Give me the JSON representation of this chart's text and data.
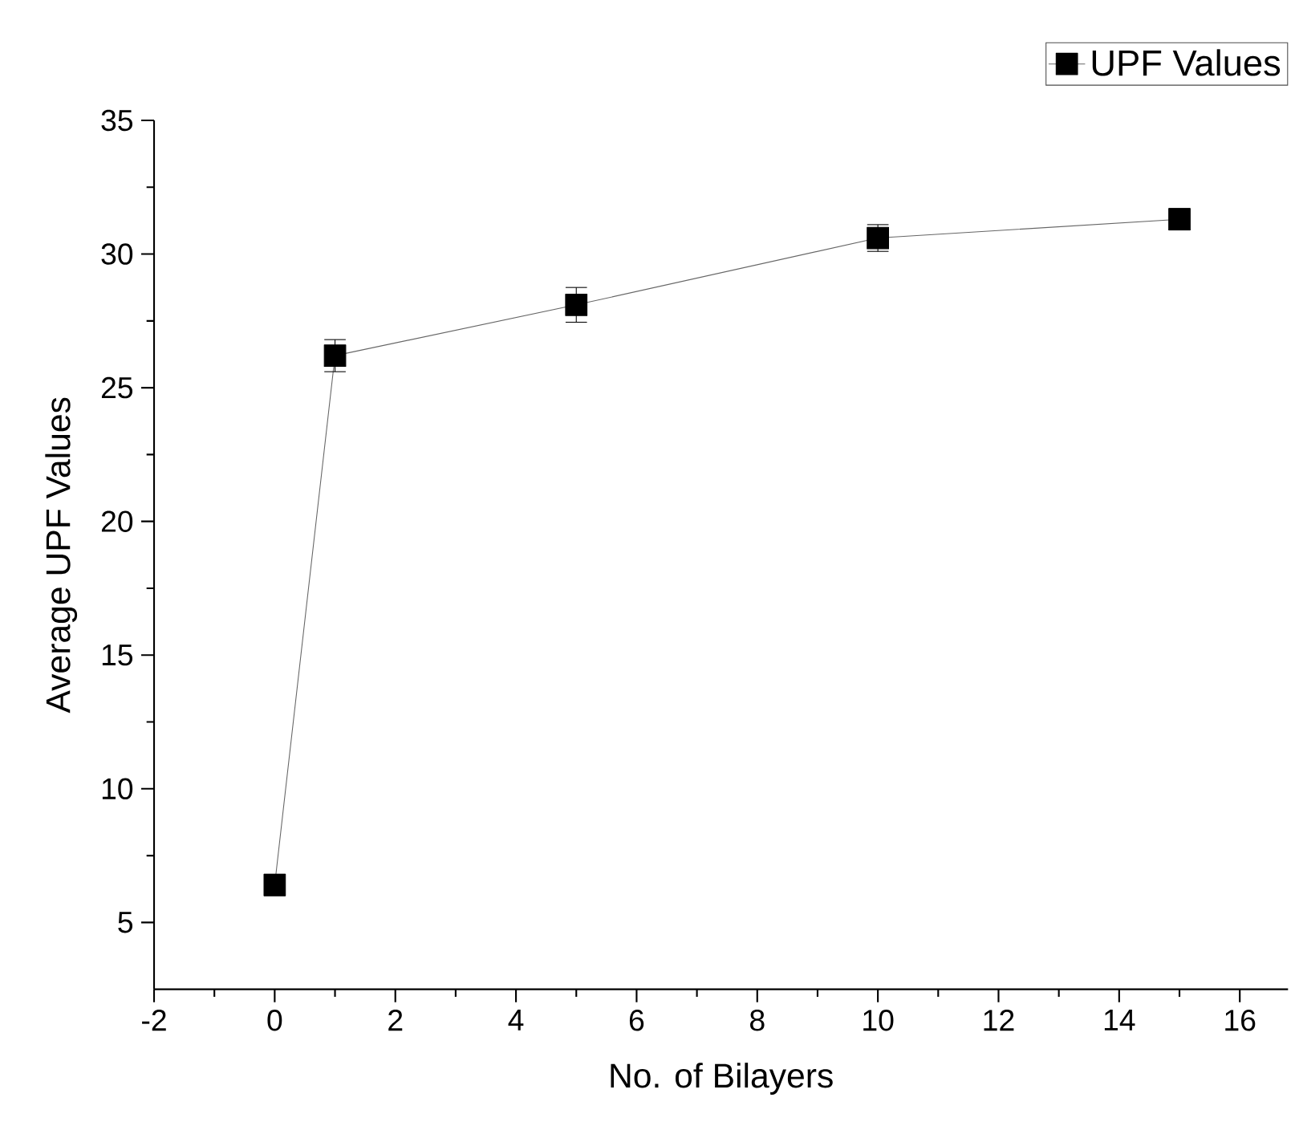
{
  "chart_data": {
    "type": "line",
    "xlabel": "No. of Bilayers",
    "ylabel": "Average UPF Values",
    "x": [
      0,
      1,
      5,
      10,
      15
    ],
    "series": [
      {
        "name": "UPF Values",
        "color": "#000000",
        "values": [
          6.4,
          26.2,
          28.1,
          30.6,
          31.3
        ],
        "errors": [
          0.4,
          0.6,
          0.65,
          0.5,
          0.4
        ]
      }
    ],
    "xlim": [
      -2,
      16.8
    ],
    "ylim": [
      2.5,
      35
    ],
    "xticks": [
      -2,
      0,
      2,
      4,
      6,
      8,
      10,
      12,
      14,
      16
    ],
    "yticks": [
      5,
      10,
      15,
      20,
      25,
      30,
      35
    ],
    "marker": "square",
    "line_style": "solid",
    "legend": "top right",
    "grid": false
  }
}
